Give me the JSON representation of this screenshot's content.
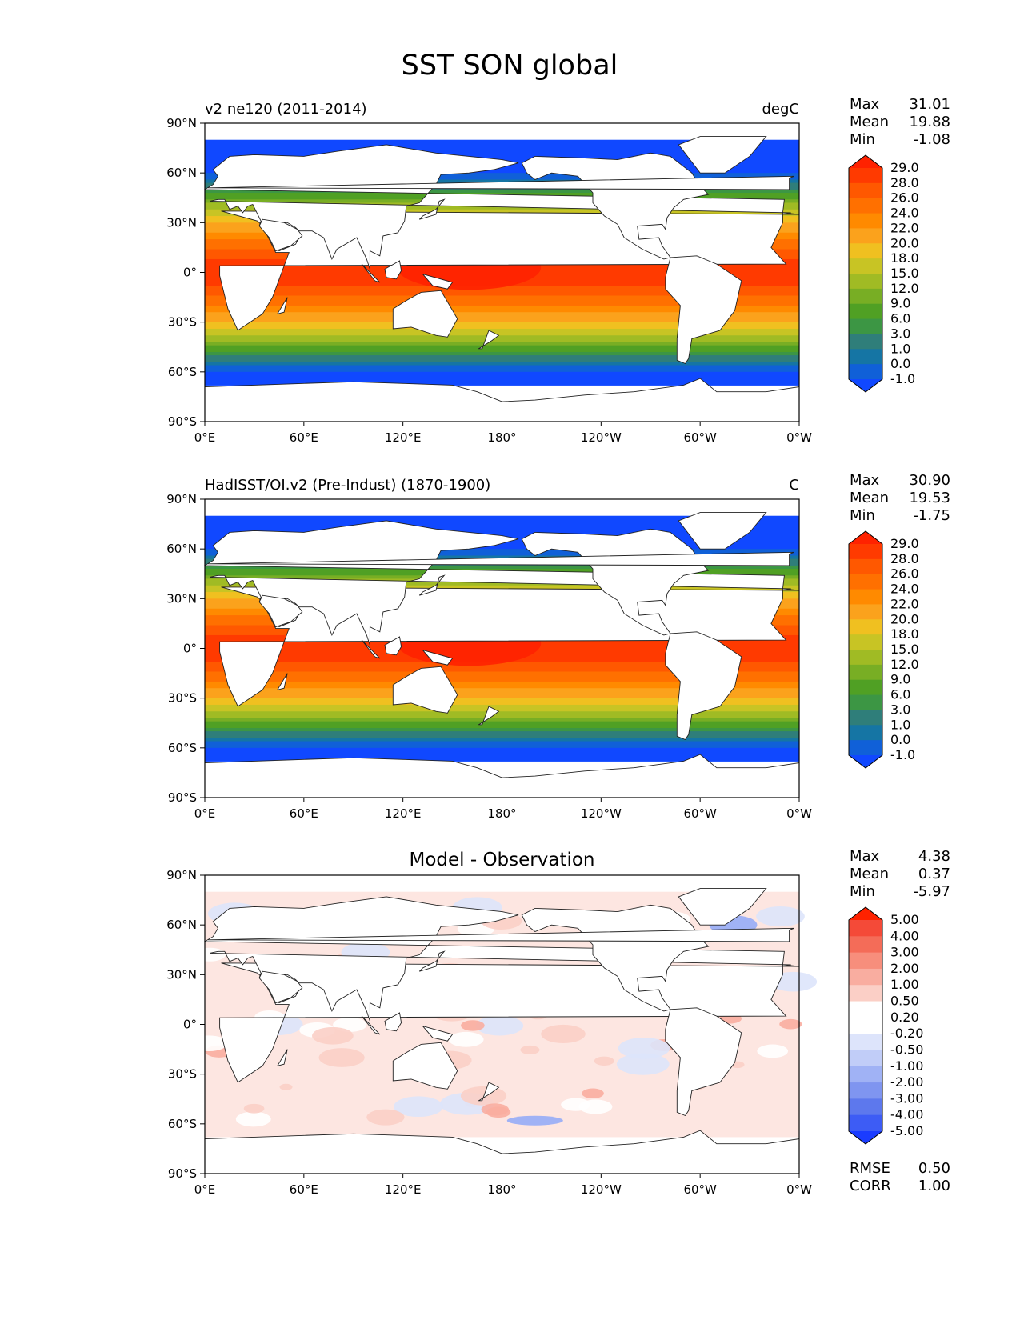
{
  "figure": {
    "title": "SST SON global"
  },
  "axes": {
    "lat_labels": [
      "90°N",
      "60°N",
      "30°N",
      "0°",
      "30°S",
      "60°S",
      "90°S"
    ],
    "lon_labels": [
      "0°E",
      "60°E",
      "120°E",
      "180°",
      "120°W",
      "60°W",
      "0°W"
    ]
  },
  "panels": [
    {
      "left_title": "v2 ne120 (2011-2014)",
      "right_title": "degC",
      "center_title": "",
      "stats": [
        {
          "label": "Max",
          "value": "31.01"
        },
        {
          "label": "Mean",
          "value": "19.88"
        },
        {
          "label": "Min",
          "value": "-1.08"
        }
      ],
      "colorbar": {
        "labels": [
          "29.0",
          "28.0",
          "26.0",
          "24.0",
          "22.0",
          "20.0",
          "18.0",
          "15.0",
          "12.0",
          "9.0",
          "6.0",
          "3.0",
          "1.0",
          "0.0",
          "-1.0"
        ],
        "colors": [
          "#ff2200",
          "#ff3a00",
          "#ff5800",
          "#ff7000",
          "#ff8a00",
          "#fba21c",
          "#f0c020",
          "#c8c424",
          "#a0bb24",
          "#78ae24",
          "#50a024",
          "#3c9644",
          "#2f7e7a",
          "#1575a4",
          "#1060d8",
          "#1048ff"
        ]
      }
    },
    {
      "left_title": "HadISST/OI.v2 (Pre-Indust) (1870-1900)",
      "right_title": "C",
      "center_title": "",
      "stats": [
        {
          "label": "Max",
          "value": "30.90"
        },
        {
          "label": "Mean",
          "value": "19.53"
        },
        {
          "label": "Min",
          "value": "-1.75"
        }
      ],
      "colorbar": {
        "labels": [
          "29.0",
          "28.0",
          "26.0",
          "24.0",
          "22.0",
          "20.0",
          "18.0",
          "15.0",
          "12.0",
          "9.0",
          "6.0",
          "3.0",
          "1.0",
          "0.0",
          "-1.0"
        ],
        "colors": [
          "#ff2200",
          "#ff3a00",
          "#ff5800",
          "#ff7000",
          "#ff8a00",
          "#fba21c",
          "#f0c020",
          "#c8c424",
          "#a0bb24",
          "#78ae24",
          "#50a024",
          "#3c9644",
          "#2f7e7a",
          "#1575a4",
          "#1060d8",
          "#1048ff"
        ]
      }
    },
    {
      "left_title": "",
      "right_title": "",
      "center_title": "Model - Observation",
      "stats": [
        {
          "label": "Max",
          "value": "4.38"
        },
        {
          "label": "Mean",
          "value": "0.37"
        },
        {
          "label": "Min",
          "value": "-5.97"
        }
      ],
      "extra_stats": [
        {
          "label": "RMSE",
          "value": "0.50"
        },
        {
          "label": "CORR",
          "value": "1.00"
        }
      ],
      "colorbar": {
        "labels": [
          "5.00",
          "4.00",
          "3.00",
          "2.00",
          "1.00",
          "0.50",
          "0.20",
          "-0.20",
          "-0.50",
          "-1.00",
          "-2.00",
          "-3.00",
          "-4.00",
          "-5.00"
        ],
        "colors": [
          "#ff2200",
          "#f44a38",
          "#f46c58",
          "#f78e7c",
          "#f9ada0",
          "#fbcfc6",
          "#ffffff",
          "#ffffff",
          "#dde4fb",
          "#c1cdf8",
          "#a0b2f5",
          "#7f95f0",
          "#5d78ed",
          "#3d5cf5",
          "#1a3cff"
        ]
      }
    }
  ]
}
